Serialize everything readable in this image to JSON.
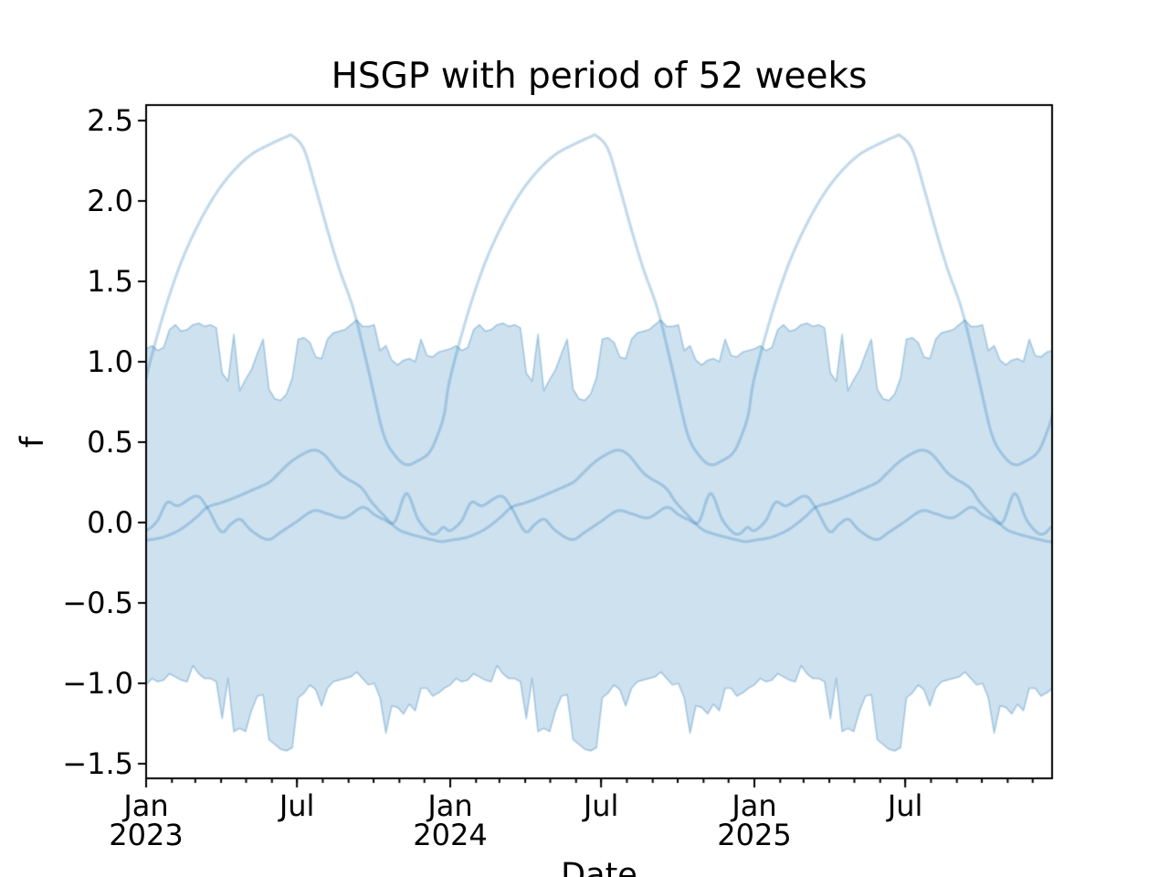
{
  "figure": {
    "title": "HSGP with period of 52 weeks",
    "xlabel": "Date",
    "ylabel": "f"
  },
  "chart_data": {
    "type": "line",
    "title": "HSGP with period of 52 weeks",
    "xlabel": "Date",
    "ylabel": "f",
    "period_weeks": 52,
    "calendar_year_weeks": 52.143,
    "xlim_weeks": [
      0,
      155.33
    ],
    "ylim": [
      -1.591,
      2.597
    ],
    "grid": false,
    "legend": "none",
    "y_ticks": [
      {
        "value": 2.5,
        "label": "2.5"
      },
      {
        "value": 2.0,
        "label": "2.0"
      },
      {
        "value": 1.5,
        "label": "1.5"
      },
      {
        "value": 1.0,
        "label": "1.0"
      },
      {
        "value": 0.5,
        "label": "0.5"
      },
      {
        "value": 0.0,
        "label": "0.0"
      },
      {
        "value": -0.5,
        "label": "−0.5"
      },
      {
        "value": -1.0,
        "label": "−1.0"
      },
      {
        "value": -1.5,
        "label": "−1.5"
      }
    ],
    "x_major_ticks": [
      {
        "week": 0,
        "line1": "Jan",
        "line2": "2023"
      },
      {
        "week": 25.857,
        "line1": "Jul",
        "line2": ""
      },
      {
        "week": 52.143,
        "line1": "Jan",
        "line2": "2024"
      },
      {
        "week": 78.0,
        "line1": "Jul",
        "line2": ""
      },
      {
        "week": 104.286,
        "line1": "Jan",
        "line2": "2025"
      },
      {
        "week": 130.143,
        "line1": "Jul",
        "line2": ""
      }
    ],
    "month_start_weeks": [
      0,
      4.429,
      8.429,
      12.857,
      17.143,
      21.571,
      25.857,
      30.286,
      34.714,
      39.0,
      43.429,
      47.714
    ],
    "band": {
      "name": "posterior-credible-band",
      "weeks": "0..52 weekly, repeated each year",
      "upper": [
        1.08,
        1.1,
        1.07,
        1.09,
        1.2,
        1.23,
        1.19,
        1.2,
        1.23,
        1.24,
        1.22,
        1.23,
        1.21,
        0.93,
        0.88,
        1.17,
        0.82,
        0.89,
        0.95,
        1.05,
        1.14,
        0.83,
        0.77,
        0.76,
        0.8,
        0.9,
        1.14,
        1.15,
        1.12,
        1.03,
        1.02,
        1.14,
        1.18,
        1.19,
        1.2,
        1.23,
        1.26,
        1.22,
        1.22,
        1.23,
        1.07,
        1.1,
        1.01,
        0.98,
        1.01,
        1.02,
        1.0,
        1.14,
        1.04,
        1.03,
        1.06,
        1.07,
        1.08
      ],
      "lower": [
        -1.01,
        -0.97,
        -0.99,
        -0.98,
        -0.94,
        -0.96,
        -0.98,
        -0.99,
        -0.89,
        -0.94,
        -0.97,
        -0.97,
        -0.99,
        -1.22,
        -0.97,
        -1.3,
        -1.28,
        -1.3,
        -1.17,
        -1.08,
        -1.07,
        -1.35,
        -1.38,
        -1.41,
        -1.42,
        -1.4,
        -1.09,
        -1.06,
        -1.01,
        -1.04,
        -1.14,
        -1.03,
        -0.99,
        -0.98,
        -0.97,
        -0.96,
        -0.93,
        -0.97,
        -1.01,
        -1.0,
        -1.09,
        -1.31,
        -1.14,
        -1.15,
        -1.19,
        -1.13,
        -1.17,
        -1.03,
        -1.03,
        -1.08,
        -1.06,
        -1.03,
        -1.01
      ]
    },
    "series": [
      {
        "name": "sample-annual-large",
        "knots_week_value": [
          [
            0,
            0.9
          ],
          [
            3,
            1.3
          ],
          [
            6,
            1.62
          ],
          [
            9,
            1.86
          ],
          [
            12,
            2.05
          ],
          [
            15,
            2.19
          ],
          [
            18,
            2.29
          ],
          [
            21,
            2.35
          ],
          [
            24,
            2.4
          ],
          [
            25,
            2.405
          ],
          [
            27,
            2.32
          ],
          [
            29,
            2.08
          ],
          [
            31,
            1.82
          ],
          [
            33,
            1.58
          ],
          [
            35.5,
            1.32
          ],
          [
            38,
            0.95
          ],
          [
            40.5,
            0.56
          ],
          [
            42.5,
            0.42
          ],
          [
            44.5,
            0.36
          ],
          [
            46.5,
            0.385
          ],
          [
            48.5,
            0.44
          ],
          [
            50,
            0.56
          ],
          [
            51,
            0.68
          ],
          [
            52,
            0.9
          ]
        ]
      },
      {
        "name": "sample-medium",
        "knots_week_value": [
          [
            0,
            -0.11
          ],
          [
            3,
            -0.09
          ],
          [
            6,
            -0.04
          ],
          [
            8.5,
            0.03
          ],
          [
            10.5,
            0.095
          ],
          [
            13,
            0.125
          ],
          [
            15.5,
            0.16
          ],
          [
            18,
            0.2
          ],
          [
            21,
            0.25
          ],
          [
            22.5,
            0.3
          ],
          [
            24.5,
            0.37
          ],
          [
            26.5,
            0.42
          ],
          [
            28.6,
            0.45
          ],
          [
            30.5,
            0.42
          ],
          [
            33.3,
            0.3
          ],
          [
            36.7,
            0.22
          ],
          [
            38.5,
            0.13
          ],
          [
            40.9,
            0.034
          ],
          [
            43,
            -0.04
          ],
          [
            45,
            -0.07
          ],
          [
            47,
            -0.09
          ],
          [
            49,
            -0.108
          ],
          [
            50.5,
            -0.118
          ],
          [
            52,
            -0.11
          ]
        ]
      },
      {
        "name": "sample-small-wiggly",
        "knots_week_value": [
          [
            0,
            -0.05
          ],
          [
            1.9,
            0.01
          ],
          [
            3.6,
            0.125
          ],
          [
            5.5,
            0.105
          ],
          [
            8.6,
            0.165
          ],
          [
            10.5,
            0.09
          ],
          [
            12.8,
            -0.055
          ],
          [
            14.5,
            -0.01
          ],
          [
            16.1,
            0.02
          ],
          [
            18,
            -0.05
          ],
          [
            20.8,
            -0.106
          ],
          [
            23,
            -0.06
          ],
          [
            25.5,
            0.0
          ],
          [
            28.6,
            0.073
          ],
          [
            31,
            0.055
          ],
          [
            33.9,
            0.03
          ],
          [
            37,
            0.095
          ],
          [
            39,
            0.05
          ],
          [
            40.6,
            0.02
          ],
          [
            42.5,
            0.005
          ],
          [
            44.5,
            0.18
          ],
          [
            46.5,
            0.02
          ],
          [
            48.4,
            -0.063
          ],
          [
            49.6,
            -0.068
          ],
          [
            50.8,
            -0.03
          ],
          [
            52,
            -0.05
          ]
        ]
      }
    ],
    "colors": {
      "base": "#1f77b4",
      "line_alpha": 0.27,
      "fill_alpha": 0.22,
      "band_edge_alpha": 0.3,
      "axis": "#000000",
      "background": "#ffffff"
    },
    "line_width": 3.2,
    "band_edge_width": 1.8
  }
}
